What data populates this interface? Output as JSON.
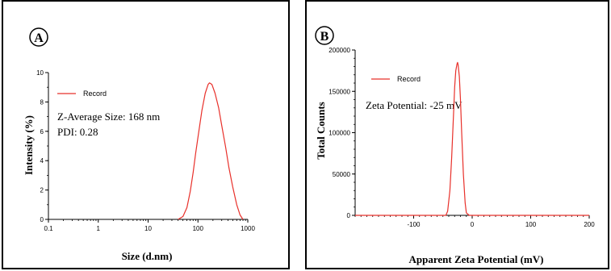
{
  "colors": {
    "curve": "#e8302a",
    "axis": "#000000"
  },
  "chart_data": [
    {
      "panel": "A",
      "type": "line",
      "xlabel": "Size (d.nm)",
      "ylabel": "Intensity (%)",
      "xscale": "log",
      "xlim": [
        0.1,
        1000
      ],
      "ylim": [
        0,
        10
      ],
      "xticks": [
        0.1,
        1,
        10,
        100,
        1000
      ],
      "xtick_labels": [
        "0.1",
        "1",
        "10",
        "100",
        "1000"
      ],
      "yticks": [
        0,
        2,
        4,
        6,
        8,
        10
      ],
      "ytick_labels": [
        "0",
        "2",
        "4",
        "6",
        "8",
        "10"
      ],
      "legend": "top-left",
      "series": [
        {
          "name": "Record",
          "x": [
            40,
            50,
            60,
            70,
            80,
            90,
            100,
            120,
            140,
            160,
            170,
            190,
            220,
            260,
            300,
            360,
            420,
            500,
            600,
            700,
            800
          ],
          "y": [
            0,
            0.2,
            0.8,
            1.9,
            3.2,
            4.5,
            5.6,
            7.4,
            8.6,
            9.2,
            9.3,
            9.2,
            8.6,
            7.6,
            6.4,
            4.9,
            3.5,
            2.2,
            1.0,
            0.3,
            0
          ]
        }
      ],
      "annotations": [
        "Z-Average Size: 168 nm",
        "PDI: 0.28"
      ]
    },
    {
      "panel": "B",
      "type": "line",
      "xlabel": "Apparent Zeta Potential (mV)",
      "ylabel": "Total Counts",
      "xlim": [
        -200,
        200
      ],
      "ylim": [
        0,
        200000
      ],
      "xticks": [
        -100,
        0,
        100,
        200
      ],
      "xtick_labels": [
        "-100",
        "0",
        "100",
        "200"
      ],
      "yticks": [
        0,
        50000,
        100000,
        150000,
        200000
      ],
      "ytick_labels": [
        "0",
        "50000",
        "100000",
        "150000",
        "200000"
      ],
      "legend": "top-left",
      "series": [
        {
          "name": "Record",
          "x": [
            -200,
            -60,
            -45,
            -42,
            -38,
            -35,
            -32,
            -30,
            -28,
            -26,
            -25,
            -24,
            -22,
            -20,
            -18,
            -15,
            -12,
            -10,
            -5,
            200
          ],
          "y": [
            0,
            0,
            0,
            5000,
            30000,
            70000,
            120000,
            155000,
            175000,
            183000,
            185000,
            182000,
            168000,
            140000,
            100000,
            50000,
            15000,
            3000,
            0,
            0
          ]
        }
      ],
      "annotations": [
        "Zeta Potential: -25 mV"
      ]
    }
  ]
}
